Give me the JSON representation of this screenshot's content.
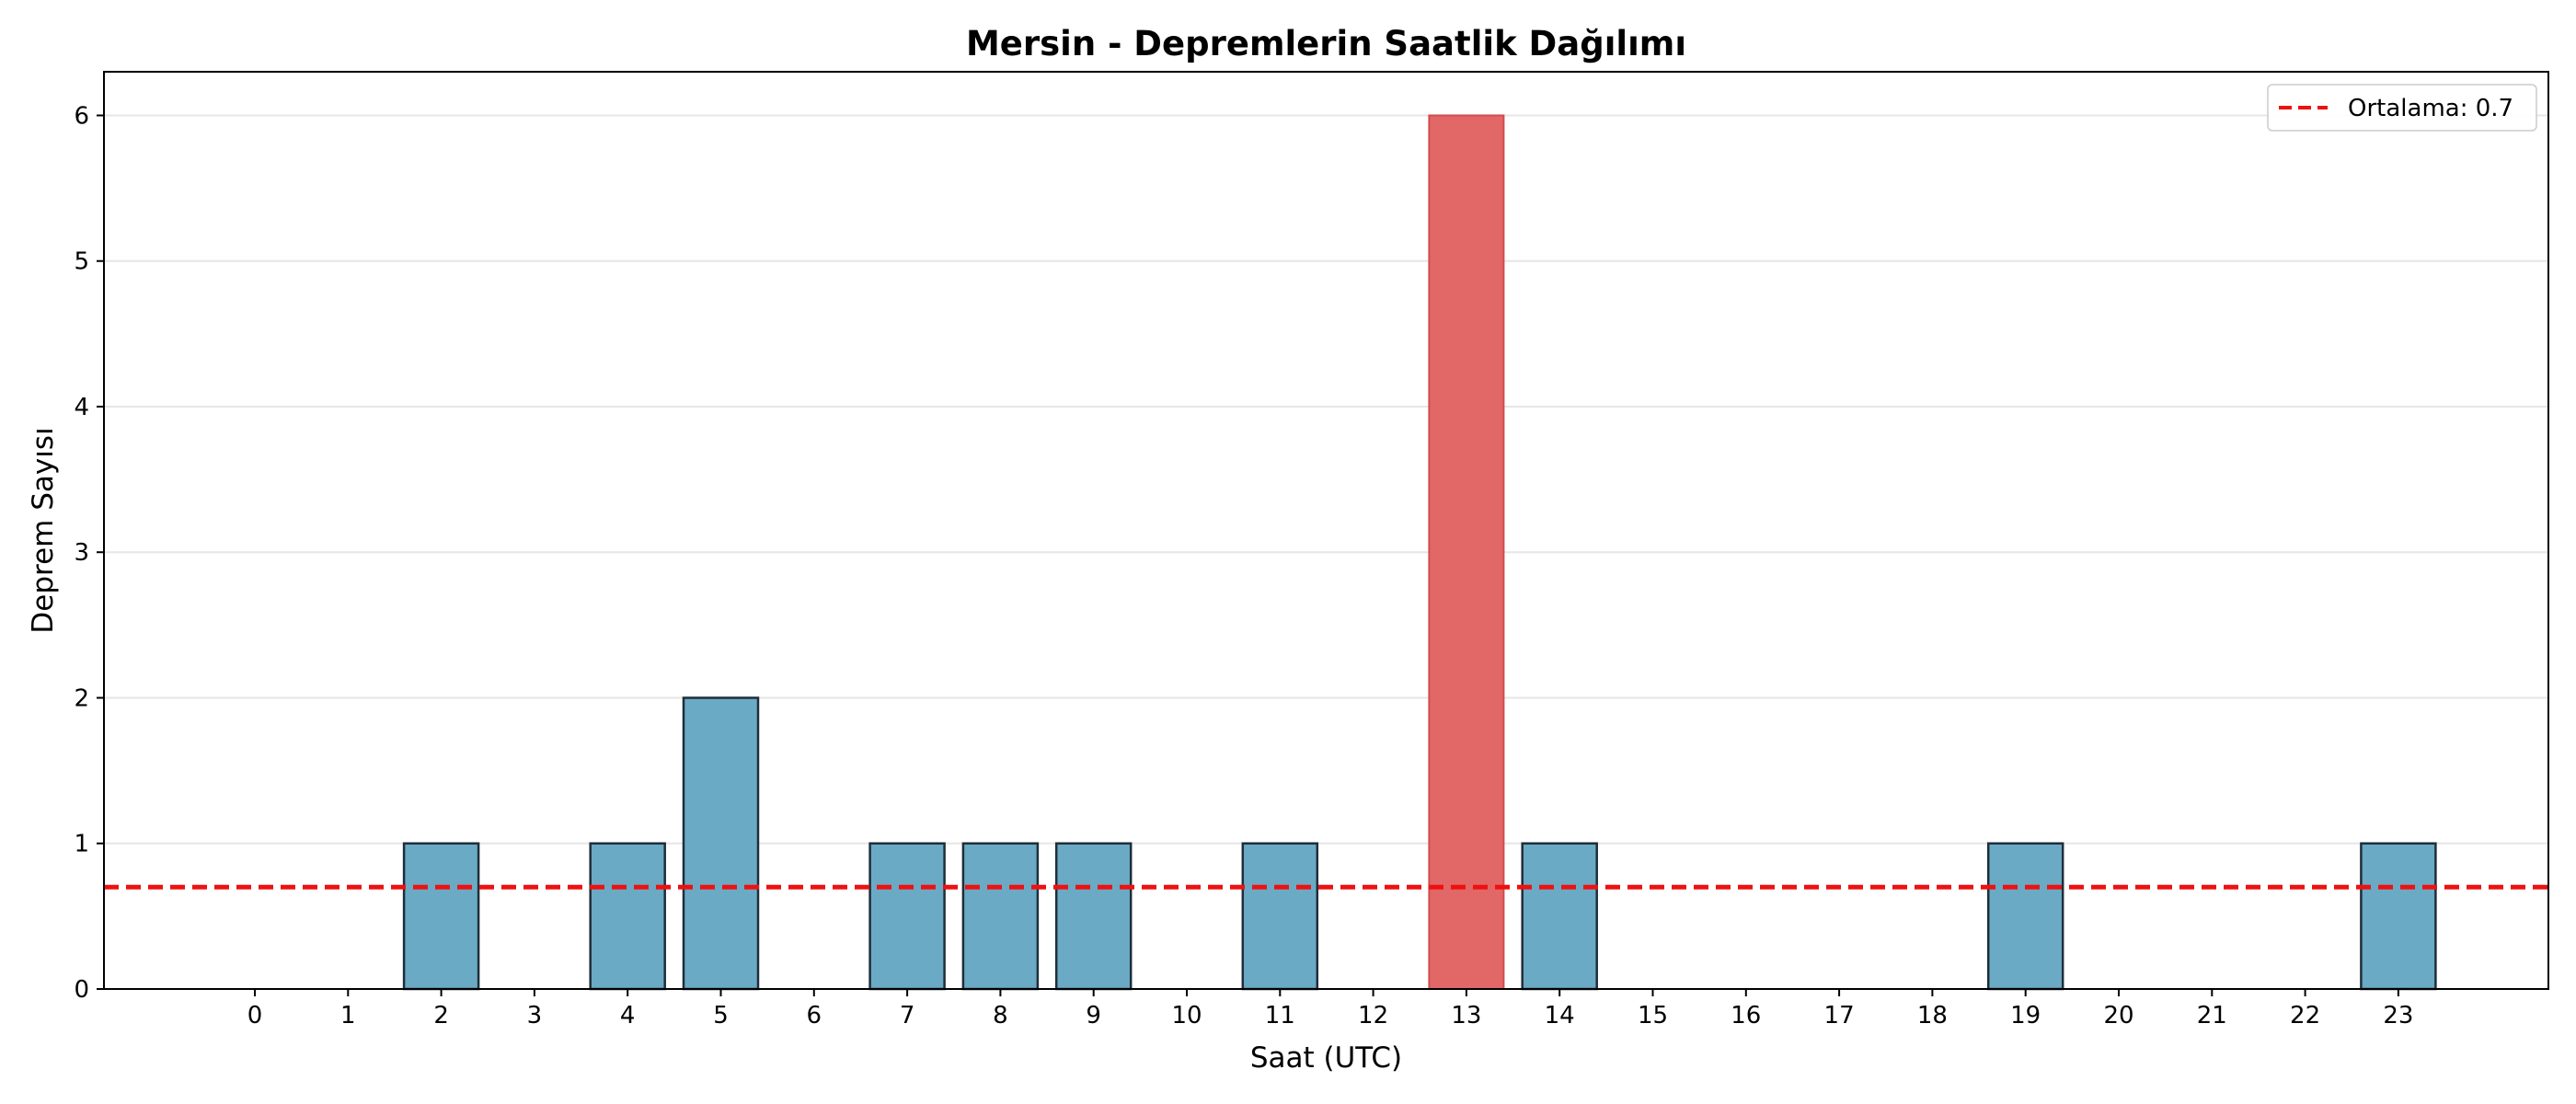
{
  "chart_data": {
    "type": "bar",
    "title": "Mersin - Depremlerin Saatlik Dağılımı",
    "xlabel": "Saat (UTC)",
    "ylabel": "Deprem Sayısı",
    "categories": [
      "0",
      "1",
      "2",
      "3",
      "4",
      "5",
      "6",
      "7",
      "8",
      "9",
      "10",
      "11",
      "12",
      "13",
      "14",
      "15",
      "16",
      "17",
      "18",
      "19",
      "20",
      "21",
      "22",
      "23"
    ],
    "values": [
      0,
      0,
      1,
      0,
      1,
      2,
      0,
      1,
      1,
      1,
      0,
      1,
      0,
      6,
      1,
      0,
      0,
      0,
      0,
      1,
      0,
      0,
      0,
      1
    ],
    "ylim": [
      0,
      6.3
    ],
    "yticks": [
      0,
      1,
      2,
      3,
      4,
      5,
      6
    ],
    "highlight_index": 13,
    "colors": {
      "bar": "#6aaac5",
      "highlight": "#e26767",
      "edge": "#1e2e3a",
      "mean_line": "#ee1111",
      "grid": "#e6e6e6"
    },
    "mean_line": {
      "value": 0.7,
      "label": "Ortalama: 0.7",
      "style": "dashed"
    },
    "grid": {
      "y": true,
      "x": false
    },
    "legend_position": "top-right"
  }
}
